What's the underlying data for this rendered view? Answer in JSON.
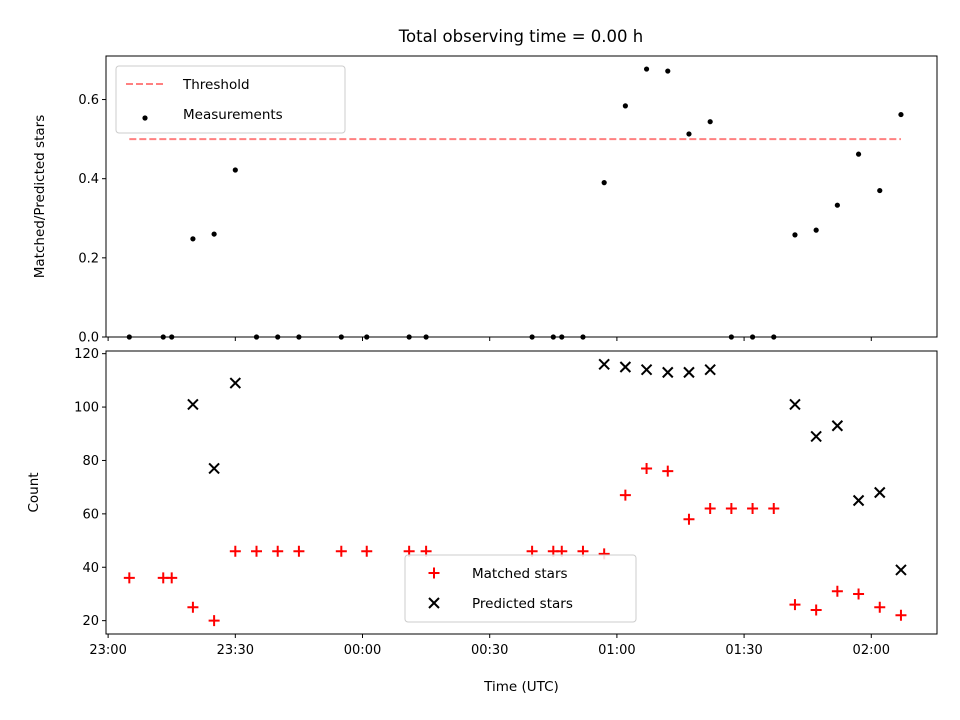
{
  "chart_data": [
    {
      "type": "scatter",
      "title": "Total observing time = 0.00 h",
      "ylabel": "Matched/Predicted stars",
      "xlabel": "",
      "ylim": [
        0,
        0.71
      ],
      "xlim": [
        "22:59:30",
        "02:15:30"
      ],
      "yticks": [
        "0.0",
        "0.2",
        "0.4",
        "0.6"
      ],
      "legend_position": "upper-left",
      "series": [
        {
          "name": "Threshold",
          "style": "dashed-line",
          "color": "#ff8080",
          "x": [
            "23:05",
            "02:07"
          ],
          "y": [
            0.5,
            0.5
          ]
        },
        {
          "name": "Measurements",
          "style": "dots",
          "color": "#000000",
          "x": [
            "23:05",
            "23:13",
            "23:15",
            "23:20",
            "23:25",
            "23:30",
            "23:35",
            "23:40",
            "23:45",
            "23:55",
            "24:01",
            "24:11",
            "24:15",
            "24:40",
            "24:45",
            "24:47",
            "24:52",
            "24:57",
            "25:02",
            "25:07",
            "25:12",
            "25:17",
            "25:22",
            "25:27",
            "25:32",
            "25:37",
            "25:42",
            "25:47",
            "25:52",
            "25:57",
            "26:02",
            "26:07"
          ],
          "y": [
            0,
            0,
            0,
            0.248,
            0.26,
            0.422,
            0,
            0,
            0,
            0,
            0,
            0,
            0,
            0,
            0,
            0,
            0,
            0.39,
            0.584,
            0.677,
            0.672,
            0.513,
            0.544,
            0,
            0,
            0,
            0.258,
            0.27,
            0.333,
            0.462,
            0.37,
            0.562
          ]
        }
      ]
    },
    {
      "type": "scatter",
      "title": "",
      "ylabel": "Count",
      "xlabel": "Time (UTC)",
      "ylim": [
        15,
        121
      ],
      "xlim": [
        "22:59:30",
        "02:15:30"
      ],
      "yticks": [
        "20",
        "40",
        "60",
        "80",
        "100",
        "120"
      ],
      "xticks": [
        "23:00",
        "23:30",
        "00:00",
        "00:30",
        "01:00",
        "01:30",
        "02:00"
      ],
      "legend_position": "lower-center",
      "series": [
        {
          "name": "Matched stars",
          "marker": "plus",
          "color": "#ff0000",
          "x": [
            "23:05",
            "23:13",
            "23:15",
            "23:20",
            "23:25",
            "23:30",
            "23:35",
            "23:40",
            "23:45",
            "23:55",
            "24:01",
            "24:11",
            "24:15",
            "24:40",
            "24:45",
            "24:47",
            "24:52",
            "24:57",
            "25:02",
            "25:07",
            "25:12",
            "25:17",
            "25:22",
            "25:27",
            "25:32",
            "25:37",
            "25:42",
            "25:47",
            "25:52",
            "25:57",
            "26:02",
            "26:07"
          ],
          "y": [
            36,
            36,
            36,
            25,
            20,
            46,
            46,
            46,
            46,
            46,
            46,
            46,
            46,
            46,
            46,
            46,
            46,
            45,
            67,
            77,
            76,
            58,
            62,
            62,
            62,
            62,
            26,
            24,
            31,
            30,
            25,
            22
          ]
        },
        {
          "name": "Predicted stars",
          "marker": "x",
          "color": "#000000",
          "x": [
            "23:20",
            "23:25",
            "23:30",
            "24:57",
            "25:02",
            "25:07",
            "25:12",
            "25:17",
            "25:22",
            "25:42",
            "25:47",
            "25:52",
            "25:57",
            "26:02",
            "26:07"
          ],
          "y": [
            101,
            77,
            109,
            116,
            115,
            114,
            113,
            113,
            114,
            101,
            89,
            93,
            65,
            68,
            39
          ]
        }
      ]
    }
  ]
}
